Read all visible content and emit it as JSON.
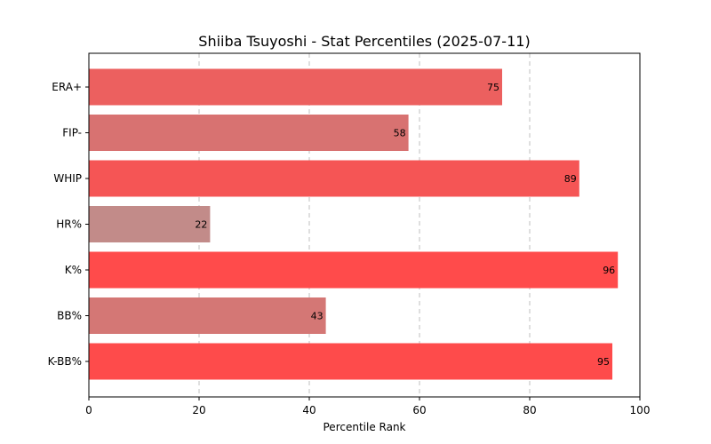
{
  "chart_data": {
    "type": "bar",
    "orientation": "horizontal",
    "title": "Shiiba Tsuyoshi - Stat Percentiles (2025-07-11)",
    "xlabel": "Percentile Rank",
    "ylabel": "",
    "xlim": [
      0,
      100
    ],
    "xticks": [
      0,
      20,
      40,
      60,
      80,
      100
    ],
    "grid": "x-dashed",
    "categories": [
      "ERA+",
      "FIP-",
      "WHIP",
      "HR%",
      "K%",
      "BB%",
      "K-BB%"
    ],
    "values": [
      75,
      58,
      89,
      22,
      96,
      43,
      95
    ],
    "colors": [
      "#ec605f",
      "#d87271",
      "#f55555",
      "#c28b89",
      "#ff4b4b",
      "#d47775",
      "#fe4b4b"
    ]
  }
}
